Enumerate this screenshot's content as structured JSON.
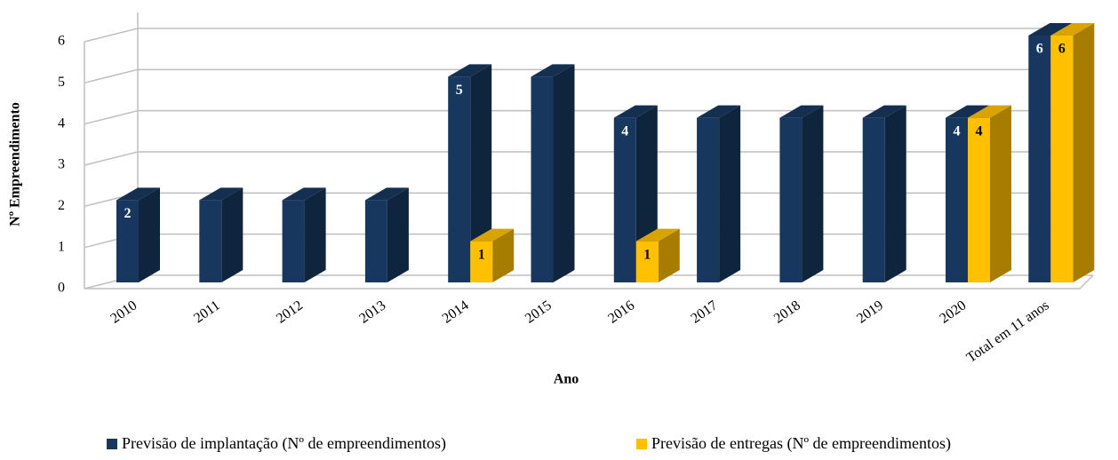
{
  "chart_data": {
    "type": "bar3d",
    "x_label": "Ano",
    "y_label": "Nº Empreendimento",
    "categories": [
      "2010",
      "2011",
      "2012",
      "2013",
      "2014",
      "2015",
      "2016",
      "2017",
      "2018",
      "2019",
      "2020",
      "Total em 11 anos"
    ],
    "series": [
      {
        "name": "Previsão de implantação (Nº de empreendimentos)",
        "color": "#17375e",
        "values": [
          2,
          2,
          2,
          2,
          5,
          5,
          4,
          4,
          4,
          4,
          4,
          6
        ],
        "value_labels": [
          "2",
          null,
          null,
          null,
          "5",
          null,
          "4",
          null,
          null,
          null,
          "4",
          "6"
        ]
      },
      {
        "name": "Previsão de entregas (Nº de empreendimentos)",
        "color": "#ffc000",
        "values": [
          null,
          null,
          null,
          null,
          1,
          null,
          1,
          null,
          null,
          null,
          4,
          6
        ],
        "value_labels": [
          null,
          null,
          null,
          null,
          "1",
          null,
          "1",
          null,
          null,
          null,
          "4",
          "6"
        ]
      }
    ],
    "ylim": [
      0,
      6
    ],
    "yticks": [
      0,
      1,
      2,
      3,
      4,
      5,
      6
    ],
    "grid": true,
    "legend": "bottom"
  }
}
